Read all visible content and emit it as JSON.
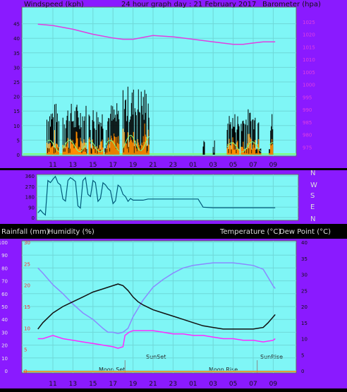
{
  "header": {
    "left_label": "Windspeed (kph)",
    "center_label": "24 hour graph day :  21 February 2017",
    "right_label": "Barometer (hpa)"
  },
  "lower_header": {
    "rainfall_label": "Rainfall (mm)",
    "humidity_label": "Humidity (%)",
    "temperature_label": "Temperature (°C)",
    "dewpoint_label": "Dew Point (°C)"
  },
  "compass": [
    "N",
    "W",
    "S",
    "E",
    "N"
  ],
  "event_labels": {
    "moon_set": "Moon Set",
    "sun_set": "SunSet",
    "moon_rise": "Moon Rise",
    "sun_rise": "SunRise"
  },
  "colors": {
    "frame": "#8a1aff",
    "plot_bg": "#7ff6f6",
    "wind": "#000000",
    "gust_fill": "#ff8c00",
    "wind_avg": "#7dff7d",
    "barometer": "#e040e0",
    "direction": "#005a7a",
    "temperature": "#111111",
    "humidity": "#8a8aff",
    "dew_point": "#ff2aff",
    "rain_axis_text": "#ff3030",
    "axis_text": "#e8e8e8"
  },
  "chart_data": [
    {
      "type": "line",
      "title": "24 hour graph day :  21 February 2017",
      "ylabel": "Windspeed (kph)",
      "y2label": "Barometer (hpa)",
      "x_tick_labels": [
        "11",
        "13",
        "15",
        "17",
        "19",
        "21",
        "23",
        "01",
        "03",
        "05",
        "07",
        "09"
      ],
      "y_ticks": [
        0,
        5,
        10,
        15,
        20,
        25,
        30,
        35,
        40,
        45
      ],
      "y2_ticks": [
        975,
        980,
        985,
        990,
        995,
        1000,
        1005,
        1010,
        1015,
        1020,
        1025
      ],
      "ylim": [
        0,
        50
      ],
      "y2lim": [
        972,
        1030
      ],
      "wind_bursts": [
        {
          "start": 10.4,
          "end": 11.6,
          "peak": 18
        },
        {
          "start": 12.0,
          "end": 14.4,
          "peak": 18
        },
        {
          "start": 14.6,
          "end": 16.0,
          "peak": 17
        },
        {
          "start": 16.2,
          "end": 17.6,
          "peak": 18
        },
        {
          "start": 18.0,
          "end": 20.6,
          "peak": 24
        },
        {
          "start": 26.0,
          "end": 26.2,
          "peak": 5
        },
        {
          "start": 27.0,
          "end": 27.2,
          "peak": 5
        },
        {
          "start": 28.4,
          "end": 29.6,
          "peak": 15
        },
        {
          "start": 29.8,
          "end": 31.8,
          "peak": 16
        },
        {
          "start": 32.6,
          "end": 33.0,
          "peak": 15
        }
      ],
      "series": [
        {
          "name": "Barometer (hpa)",
          "axis": "right",
          "x": [
            9.5,
            11,
            13,
            15,
            17,
            18,
            19,
            21,
            23,
            25,
            27,
            29,
            30,
            31,
            32,
            33.2
          ],
          "values": [
            1024,
            1023.5,
            1022,
            1020,
            1018.5,
            1018,
            1018,
            1019.5,
            1019,
            1018,
            1017,
            1016,
            1016,
            1016.5,
            1017,
            1017
          ]
        }
      ]
    },
    {
      "type": "line",
      "ylabel": "Wind direction",
      "y_ticks": [
        0,
        90,
        180,
        270,
        360
      ],
      "ylim": [
        0,
        360
      ],
      "series": [
        {
          "name": "Wind direction",
          "x": [
            9.5,
            10,
            10.5,
            11,
            11.5,
            12,
            12.5,
            13,
            13.5,
            14,
            14.5,
            15,
            15.5,
            16,
            16.5,
            17,
            17.5,
            18,
            18.5,
            19,
            20,
            20.5,
            21,
            22,
            23,
            24,
            25,
            25.5,
            26,
            27,
            28,
            29,
            30,
            31,
            32,
            33.2
          ],
          "values": [
            40,
            40,
            320,
            330,
            300,
            160,
            320,
            330,
            100,
            320,
            200,
            320,
            140,
            300,
            250,
            120,
            280,
            200,
            140,
            150,
            150,
            160,
            160,
            160,
            160,
            160,
            160,
            160,
            90,
            85,
            85,
            85,
            85,
            85,
            85,
            85
          ]
        }
      ]
    },
    {
      "type": "line",
      "ylabel": "Humidity (%)",
      "y2label": "Temperature (°C)",
      "y_ticks": [
        0,
        10,
        20,
        30,
        40,
        50,
        60,
        70,
        80,
        90,
        100
      ],
      "rain_ticks": [
        0,
        5,
        10,
        15,
        20,
        25,
        30
      ],
      "y2_ticks": [
        0,
        5,
        10,
        15,
        20,
        25,
        30,
        35,
        40
      ],
      "ylim": [
        0,
        100
      ],
      "y2lim": [
        0,
        40
      ],
      "series": [
        {
          "name": "Humidity (%)",
          "axis": "left",
          "x": [
            9.5,
            10,
            11,
            12,
            13,
            14,
            15,
            16,
            16.5,
            17,
            17.5,
            18,
            18.5,
            19,
            20,
            21,
            22,
            23,
            24,
            25,
            26,
            27,
            28,
            29,
            30,
            31,
            32,
            33,
            33.2
          ],
          "values": [
            80,
            76,
            67,
            60,
            52,
            45,
            40,
            33,
            30,
            30,
            29,
            30,
            33,
            42,
            55,
            65,
            71,
            76,
            80,
            82,
            83,
            84,
            84,
            84,
            83,
            82,
            79,
            66,
            64
          ]
        },
        {
          "name": "Temperature (°C)",
          "axis": "right",
          "x": [
            9.5,
            10,
            11,
            12,
            13,
            14,
            15,
            16,
            17,
            17.5,
            18,
            18.5,
            19,
            19.5,
            20,
            21,
            22,
            23,
            24,
            25,
            26,
            27,
            28,
            29,
            30,
            31,
            32,
            32.5,
            33.2
          ],
          "values": [
            13,
            15,
            18,
            20,
            21.5,
            23,
            24.5,
            25.5,
            26.5,
            27,
            26.5,
            25,
            23,
            21.5,
            20.5,
            19,
            18,
            17,
            16,
            15,
            14,
            13.5,
            13,
            13,
            13,
            13,
            13.5,
            15,
            17.5
          ]
        },
        {
          "name": "Dew Point (°C)",
          "axis": "right",
          "x": [
            9.5,
            10,
            11,
            12,
            13,
            14,
            15,
            16,
            17,
            17.5,
            18,
            18.2,
            18.6,
            19,
            20,
            21,
            22,
            23,
            24,
            25,
            26,
            27,
            28,
            29,
            30,
            31,
            32,
            33,
            33.2
          ],
          "values": [
            10,
            10,
            11,
            10,
            9.5,
            9,
            8.5,
            8,
            7.5,
            7,
            7.5,
            11,
            12,
            12.5,
            12.5,
            12.5,
            12,
            11.5,
            11.5,
            11,
            11,
            10.5,
            10,
            10,
            9.5,
            9.5,
            9,
            9.5,
            10
          ]
        },
        {
          "name": "Rainfall (mm)",
          "axis": "rain",
          "x": [
            9.5,
            33.2
          ],
          "values": [
            0,
            0
          ]
        }
      ]
    }
  ]
}
